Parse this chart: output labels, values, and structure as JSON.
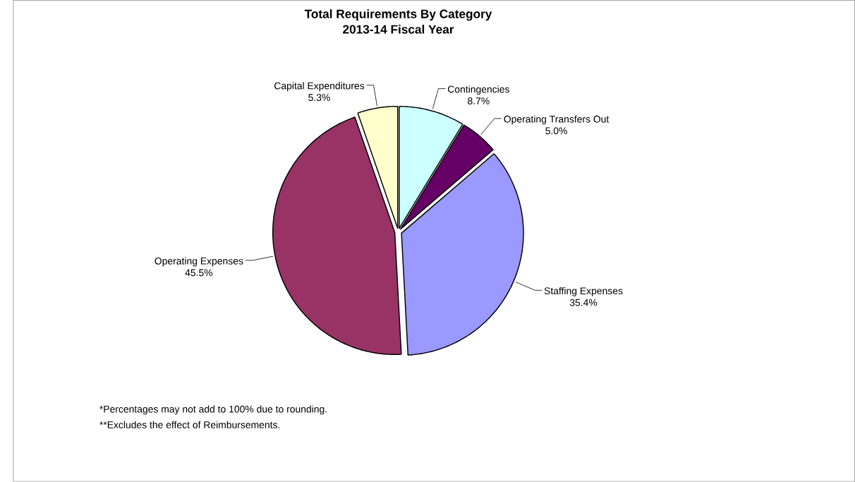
{
  "chart_data": {
    "type": "pie",
    "title": "Total Requirements By Category",
    "subtitle": "2013-14 Fiscal Year",
    "categories": [
      "Contingencies",
      "Operating Transfers Out",
      "Staffing Expenses",
      "Operating Expenses",
      "Capital Expenditures"
    ],
    "values": [
      8.7,
      5.0,
      35.4,
      45.5,
      5.3
    ],
    "value_labels": [
      "8.7%",
      "5.0%",
      "35.4%",
      "45.5%",
      "5.3%"
    ],
    "colors": [
      "#ccffff",
      "#660066",
      "#9999ff",
      "#993366",
      "#ffffcc"
    ],
    "annotations": [
      "*Percentages may not add to 100% due to rounding.",
      "**Excludes the effect of Reimbursements."
    ]
  }
}
